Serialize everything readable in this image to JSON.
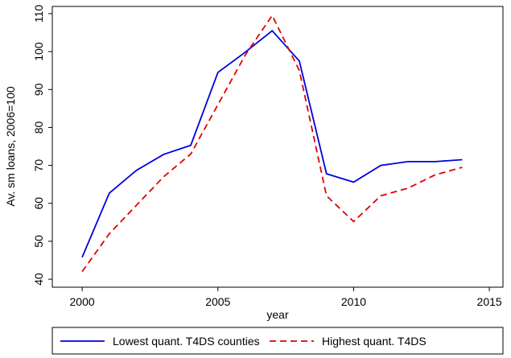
{
  "chart_data": {
    "type": "line",
    "x_label": "year",
    "y_label": "Av. sm loans, 2006=100",
    "x": [
      2000,
      2001,
      2002,
      2003,
      2004,
      2005,
      2006,
      2007,
      2008,
      2009,
      2010,
      2011,
      2012,
      2013,
      2014
    ],
    "series": [
      {
        "name": "Lowest quant. T4DS counties",
        "color": "#0000e0",
        "dash": "solid",
        "values": [
          45.8,
          62.7,
          68.7,
          72.9,
          75.3,
          94.5,
          99.8,
          105.5,
          97.5,
          67.8,
          65.6,
          70,
          71,
          71,
          71.5
        ]
      },
      {
        "name": "Highest quant. T4DS",
        "color": "#e00000",
        "dash": "dashed",
        "values": [
          42,
          52,
          59.5,
          67,
          73,
          86,
          99,
          109.5,
          95,
          62,
          55.2,
          62,
          64,
          67.5,
          69.5
        ]
      }
    ],
    "xlim": [
      1998.9,
      2015.5
    ],
    "xticks": [
      2000,
      2005,
      2010,
      2015
    ],
    "ylim": [
      37.9,
      111.9
    ],
    "yticks": [
      40,
      50,
      60,
      70,
      80,
      90,
      100,
      110
    ],
    "legend": "bottom"
  }
}
